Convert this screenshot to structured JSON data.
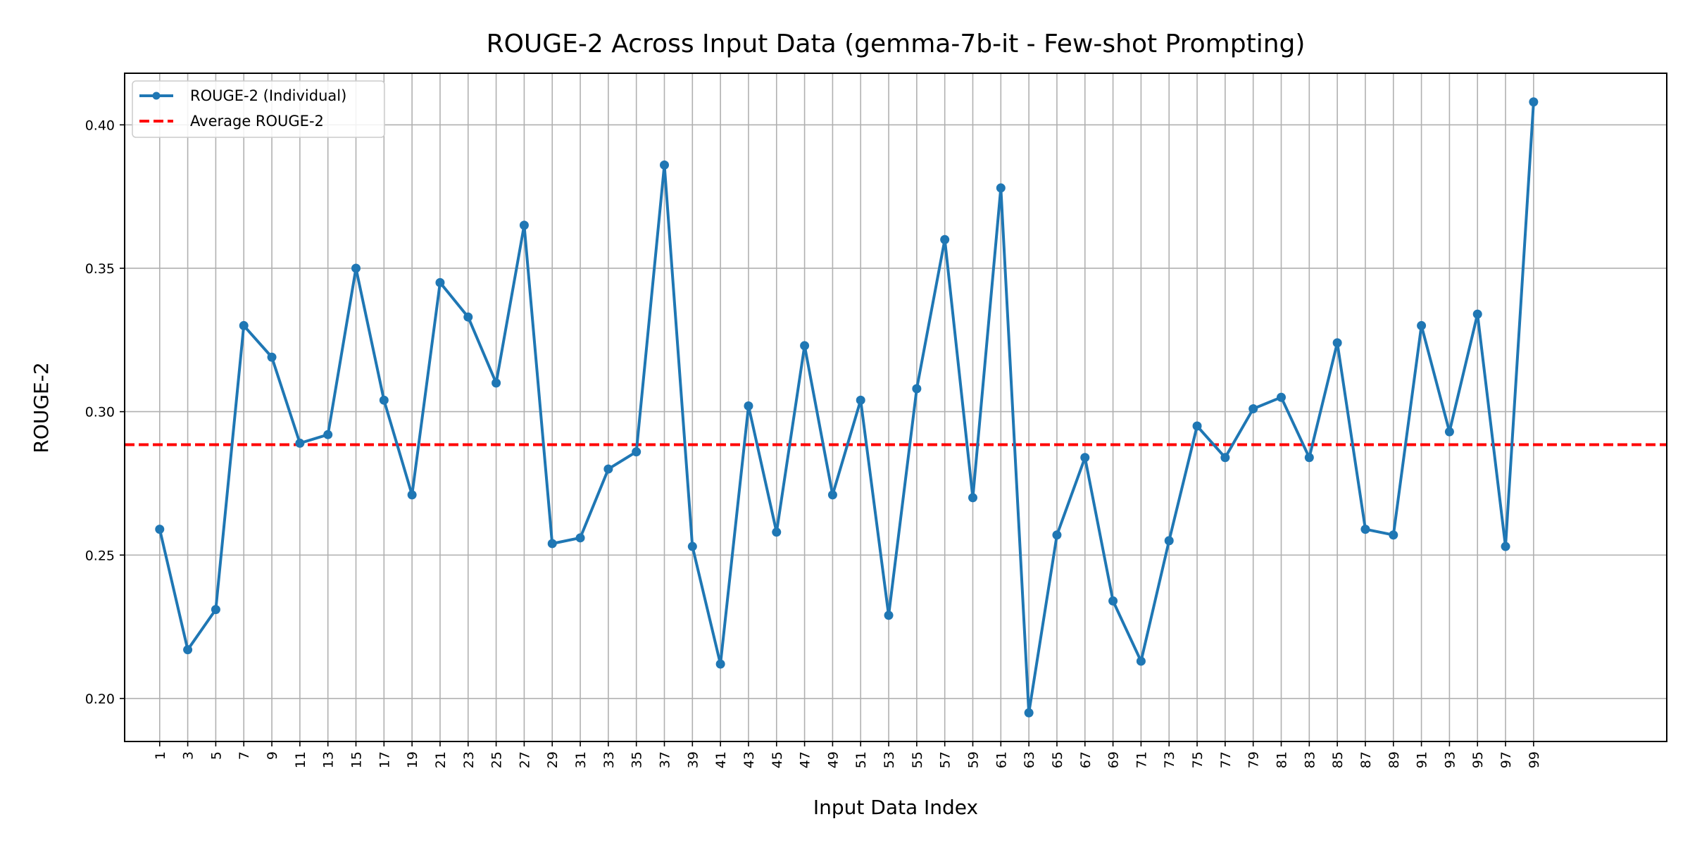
{
  "chart_data": {
    "type": "line",
    "title": "ROUGE-2 Across Input Data (gemma-7b-it - Few-shot Prompting)",
    "xlabel": "Input Data Index",
    "ylabel": "ROUGE-2",
    "xlim": [
      -1.5,
      108.5
    ],
    "ylim": [
      0.185,
      0.418
    ],
    "yticks": [
      0.2,
      0.25,
      0.3,
      0.35,
      0.4
    ],
    "ytick_labels": [
      "0.20",
      "0.25",
      "0.30",
      "0.35",
      "0.40"
    ],
    "grid": true,
    "legend_position": "upper-left",
    "colors": {
      "series": "#1f77b4",
      "average": "#ff0000"
    },
    "x": [
      1,
      3,
      5,
      7,
      9,
      11,
      13,
      15,
      17,
      19,
      21,
      23,
      25,
      27,
      29,
      31,
      33,
      35,
      37,
      39,
      41,
      43,
      45,
      47,
      49,
      51,
      53,
      55,
      57,
      59,
      61,
      63,
      65,
      67,
      69,
      71,
      73,
      75,
      77,
      79,
      81,
      83,
      85,
      87,
      89,
      91,
      93,
      95,
      97,
      99
    ],
    "x_tick_labels": [
      "1",
      "3",
      "5",
      "7",
      "9",
      "11",
      "13",
      "15",
      "17",
      "19",
      "21",
      "23",
      "25",
      "27",
      "29",
      "31",
      "33",
      "35",
      "37",
      "39",
      "41",
      "43",
      "45",
      "47",
      "49",
      "51",
      "53",
      "55",
      "57",
      "59",
      "61",
      "63",
      "65",
      "67",
      "69",
      "71",
      "73",
      "75",
      "77",
      "79",
      "81",
      "83",
      "85",
      "87",
      "89",
      "91",
      "93",
      "95",
      "97",
      "99"
    ],
    "series": [
      {
        "name": "ROUGE-2 (Individual)",
        "style": "line-marker",
        "values": [
          0.259,
          0.217,
          0.231,
          0.33,
          0.319,
          0.289,
          0.292,
          0.35,
          0.304,
          0.271,
          0.345,
          0.333,
          0.31,
          0.365,
          0.254,
          0.256,
          0.28,
          0.286,
          0.386,
          0.253,
          0.212,
          0.302,
          0.258,
          0.323,
          0.271,
          0.304,
          0.229,
          0.308,
          0.36,
          0.27,
          0.378,
          0.195,
          0.257,
          0.284,
          0.234,
          0.213,
          0.255,
          0.295,
          0.284,
          0.301,
          0.305,
          0.284,
          0.324,
          0.259,
          0.257,
          0.33,
          0.293,
          0.334,
          0.253,
          0.408
        ]
      },
      {
        "name": "Average ROUGE-2",
        "style": "dashed-hline",
        "value": 0.2885
      }
    ]
  }
}
